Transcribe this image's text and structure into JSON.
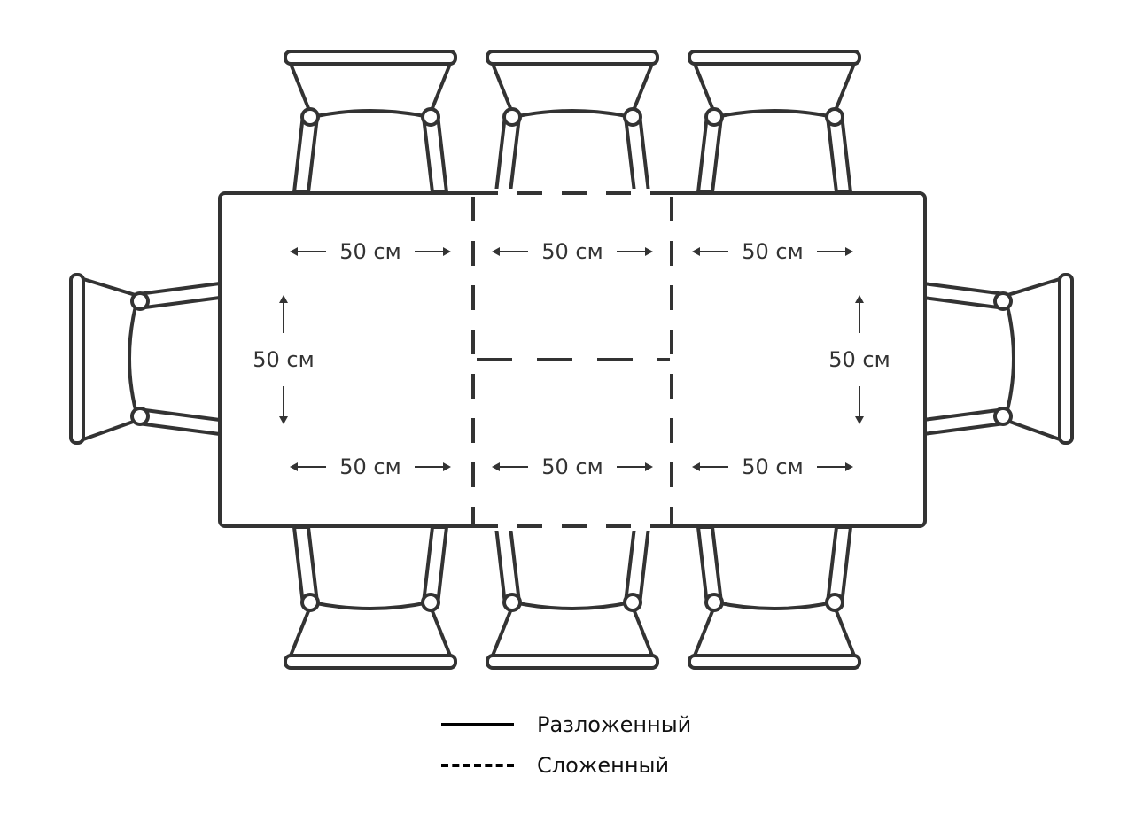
{
  "dimensions": {
    "top_left": "50 см",
    "top_center": "50 см",
    "top_right": "50 см",
    "bottom_left": "50 см",
    "bottom_center": "50 см",
    "bottom_right": "50 см",
    "left_depth": "50 см",
    "right_depth": "50 см"
  },
  "legend": {
    "solid_label": "Разложенный",
    "dashed_label": "Сложенный"
  }
}
